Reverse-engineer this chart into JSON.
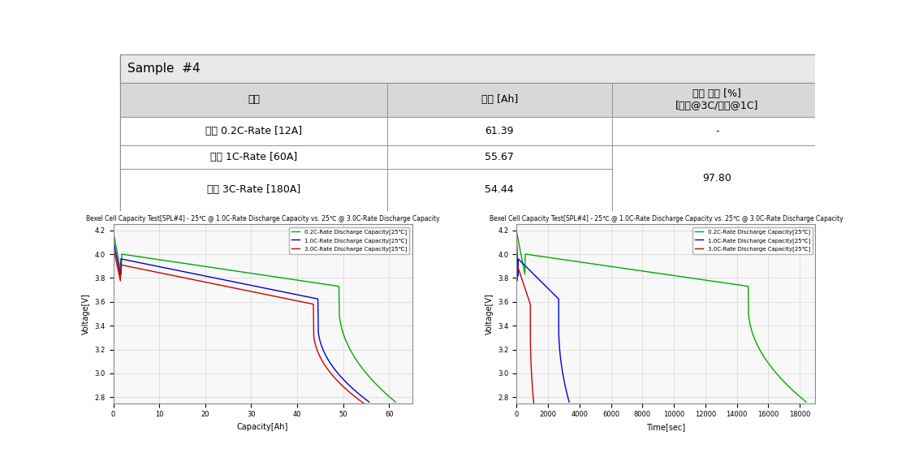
{
  "title": "Sample  #4",
  "table_headers": [
    "항목",
    "용량 [Ah]",
    "방전 효율 [%]\n[상온@3C/상온@1C]"
  ],
  "table_rows": [
    [
      "상온 0.2C-Rate [12A]",
      "61.39",
      "-"
    ],
    [
      "상온 1C-Rate [60A]",
      "55.67",
      "97.80"
    ],
    [
      "상온 3C-Rate [180A]",
      "54.44",
      "97.80"
    ]
  ],
  "row_spans": {
    "efficiency": [
      1,
      2
    ]
  },
  "plot_title": "Bexel Cell Capacity Test[SPL#4] - 25℃ @ 1.0C-Rate Discharge Capacity vs. 25℃ @ 3.0C-Rate Discharge Capacity",
  "left_xlabel": "Capacity[Ah]",
  "right_xlabel": "Time[sec]",
  "ylabel": "Voltage[V]",
  "ylim": [
    2.75,
    4.25
  ],
  "left_xlim": [
    0,
    65
  ],
  "right_xlim": [
    0,
    19000
  ],
  "left_xticks": [
    0,
    10,
    20,
    30,
    40,
    50,
    60
  ],
  "right_xticks": [
    0,
    2000,
    4000,
    6000,
    8000,
    10000,
    12000,
    14000,
    16000,
    18000
  ],
  "yticks": [
    2.8,
    3.0,
    3.2,
    3.4,
    3.6,
    3.8,
    4.0,
    4.2
  ],
  "legend_labels": [
    "0.2C-Rate Discharge Capacity[25℃]",
    "1.0C-Rate Discharge Capacity[25℃]",
    "3.0C-Rate Discharge Capacity[25℃]"
  ],
  "colors": [
    "#00aa00",
    "#0000cc",
    "#cc0000"
  ],
  "bg_color": "#f0f0f0",
  "table_header_bg": "#d0d0d0",
  "table_row_bg": "#f8f8f8",
  "border_color": "#888888"
}
